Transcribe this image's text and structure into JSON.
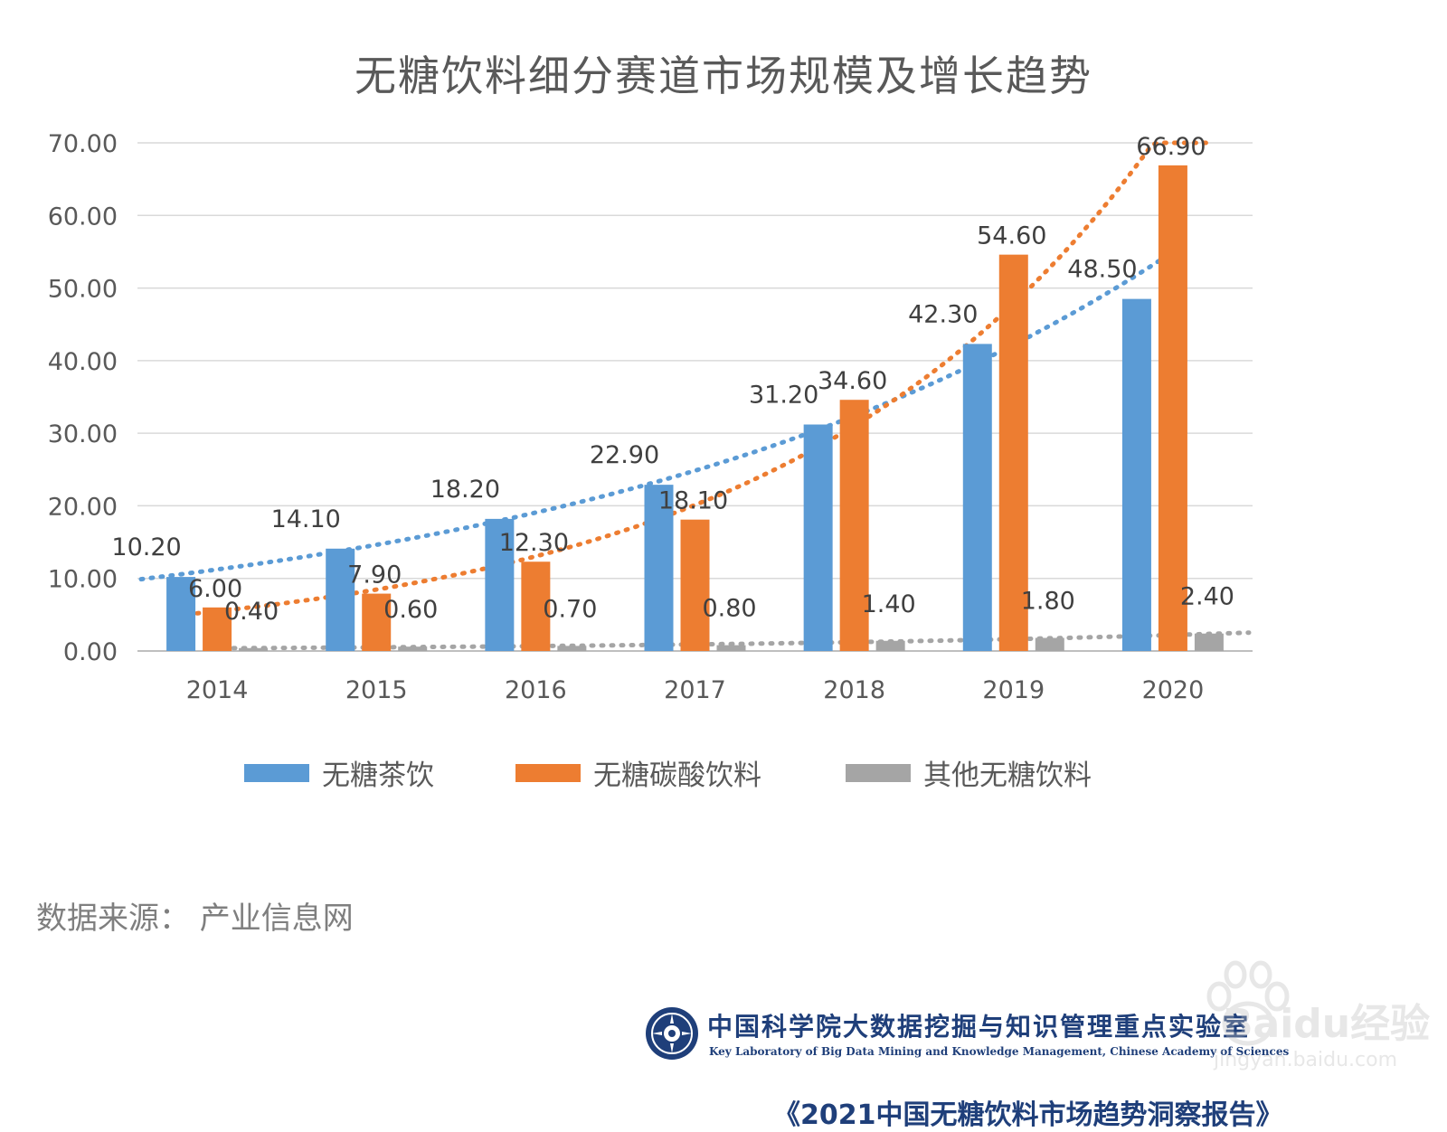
{
  "chart_data": {
    "type": "bar",
    "title": "无糖饮料细分赛道市场规模及增长趋势",
    "categories": [
      "2014",
      "2015",
      "2016",
      "2017",
      "2018",
      "2019",
      "2020"
    ],
    "series": [
      {
        "name": "无糖茶饮",
        "color": "#5b9bd5",
        "values": [
          10.2,
          14.1,
          18.2,
          22.9,
          31.2,
          42.3,
          48.5
        ],
        "labels": [
          "10.20",
          "14.10",
          "18.20",
          "22.90",
          "31.20",
          "42.30",
          "48.50"
        ]
      },
      {
        "name": "无糖碳酸饮料",
        "color": "#ed7d31",
        "values": [
          6.0,
          7.9,
          12.3,
          18.1,
          34.6,
          54.6,
          66.9
        ],
        "labels": [
          "6.00",
          "7.90",
          "12.30",
          "18.10",
          "34.60",
          "54.60",
          "66.90"
        ]
      },
      {
        "name": "其他无糖饮料",
        "color": "#a5a5a5",
        "values": [
          0.4,
          0.6,
          0.7,
          0.8,
          1.4,
          1.8,
          2.4
        ],
        "labels": [
          "0.40",
          "0.60",
          "0.70",
          "0.80",
          "1.40",
          "1.80",
          "2.40"
        ]
      }
    ],
    "trendlines": "dotted exponential trendline per series",
    "ylim": [
      0,
      70
    ],
    "yticks": [
      "0.00",
      "10.00",
      "20.00",
      "30.00",
      "40.00",
      "50.00",
      "60.00",
      "70.00"
    ],
    "xlabel": "",
    "ylabel": "",
    "grid": true,
    "legend_position": "bottom"
  },
  "source_note": "数据来源： 产业信息网",
  "organization": {
    "name_cn": "中国科学院大数据挖掘与知识管理重点实验室",
    "name_en": "Key Laboratory of Big Data Mining and Knowledge Management, Chinese Academy of Sciences"
  },
  "report_title": "《2021中国无糖饮料市场趋势洞察报告》",
  "watermark": {
    "text": "Baidu经验",
    "url": "jingyan.baidu.com"
  }
}
